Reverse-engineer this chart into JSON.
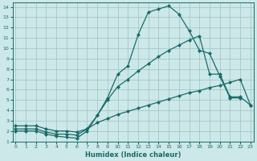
{
  "xlabel": "Humidex (Indice chaleur)",
  "background_color": "#cce8e8",
  "grid_color": "#a0c0c0",
  "line_color": "#1a6b6b",
  "xlim": [
    -0.3,
    23.3
  ],
  "ylim": [
    1,
    14.4
  ],
  "xticks": [
    0,
    1,
    2,
    3,
    4,
    5,
    6,
    7,
    8,
    9,
    10,
    11,
    12,
    13,
    14,
    15,
    16,
    17,
    18,
    19,
    20,
    21,
    22,
    23
  ],
  "yticks": [
    1,
    2,
    3,
    4,
    5,
    6,
    7,
    8,
    9,
    10,
    11,
    12,
    13,
    14
  ],
  "line1_x": [
    0,
    1,
    2,
    3,
    4,
    5,
    6,
    7,
    8,
    9,
    10,
    11,
    12,
    13,
    14,
    15,
    16,
    17,
    18,
    19,
    20,
    21,
    22
  ],
  "line1_y": [
    2.0,
    2.0,
    2.0,
    1.7,
    1.5,
    1.4,
    1.3,
    2.0,
    3.5,
    5.2,
    7.5,
    8.3,
    11.3,
    13.5,
    13.8,
    14.1,
    13.3,
    11.7,
    9.8,
    9.5,
    7.3,
    5.2,
    5.2
  ],
  "line2_x": [
    0,
    1,
    2,
    3,
    4,
    5,
    6,
    7,
    8,
    9,
    10,
    11,
    12,
    13,
    14,
    15,
    16,
    17,
    18,
    19,
    20,
    21,
    22,
    23
  ],
  "line2_y": [
    2.2,
    2.2,
    2.2,
    1.9,
    1.7,
    1.7,
    1.6,
    2.2,
    3.5,
    5.0,
    6.3,
    7.0,
    7.8,
    8.5,
    9.2,
    9.8,
    10.3,
    10.8,
    11.2,
    7.5,
    7.5,
    5.3,
    5.3,
    4.5
  ],
  "line3_x": [
    0,
    1,
    2,
    3,
    4,
    5,
    6,
    7,
    8,
    9,
    10,
    11,
    12,
    13,
    14,
    15,
    16,
    17,
    18,
    19,
    20,
    21,
    22,
    23
  ],
  "line3_y": [
    2.5,
    2.5,
    2.5,
    2.2,
    2.0,
    2.0,
    1.9,
    2.2,
    2.8,
    3.2,
    3.6,
    3.9,
    4.2,
    4.5,
    4.8,
    5.1,
    5.4,
    5.7,
    5.9,
    6.2,
    6.4,
    6.7,
    7.0,
    4.5
  ]
}
